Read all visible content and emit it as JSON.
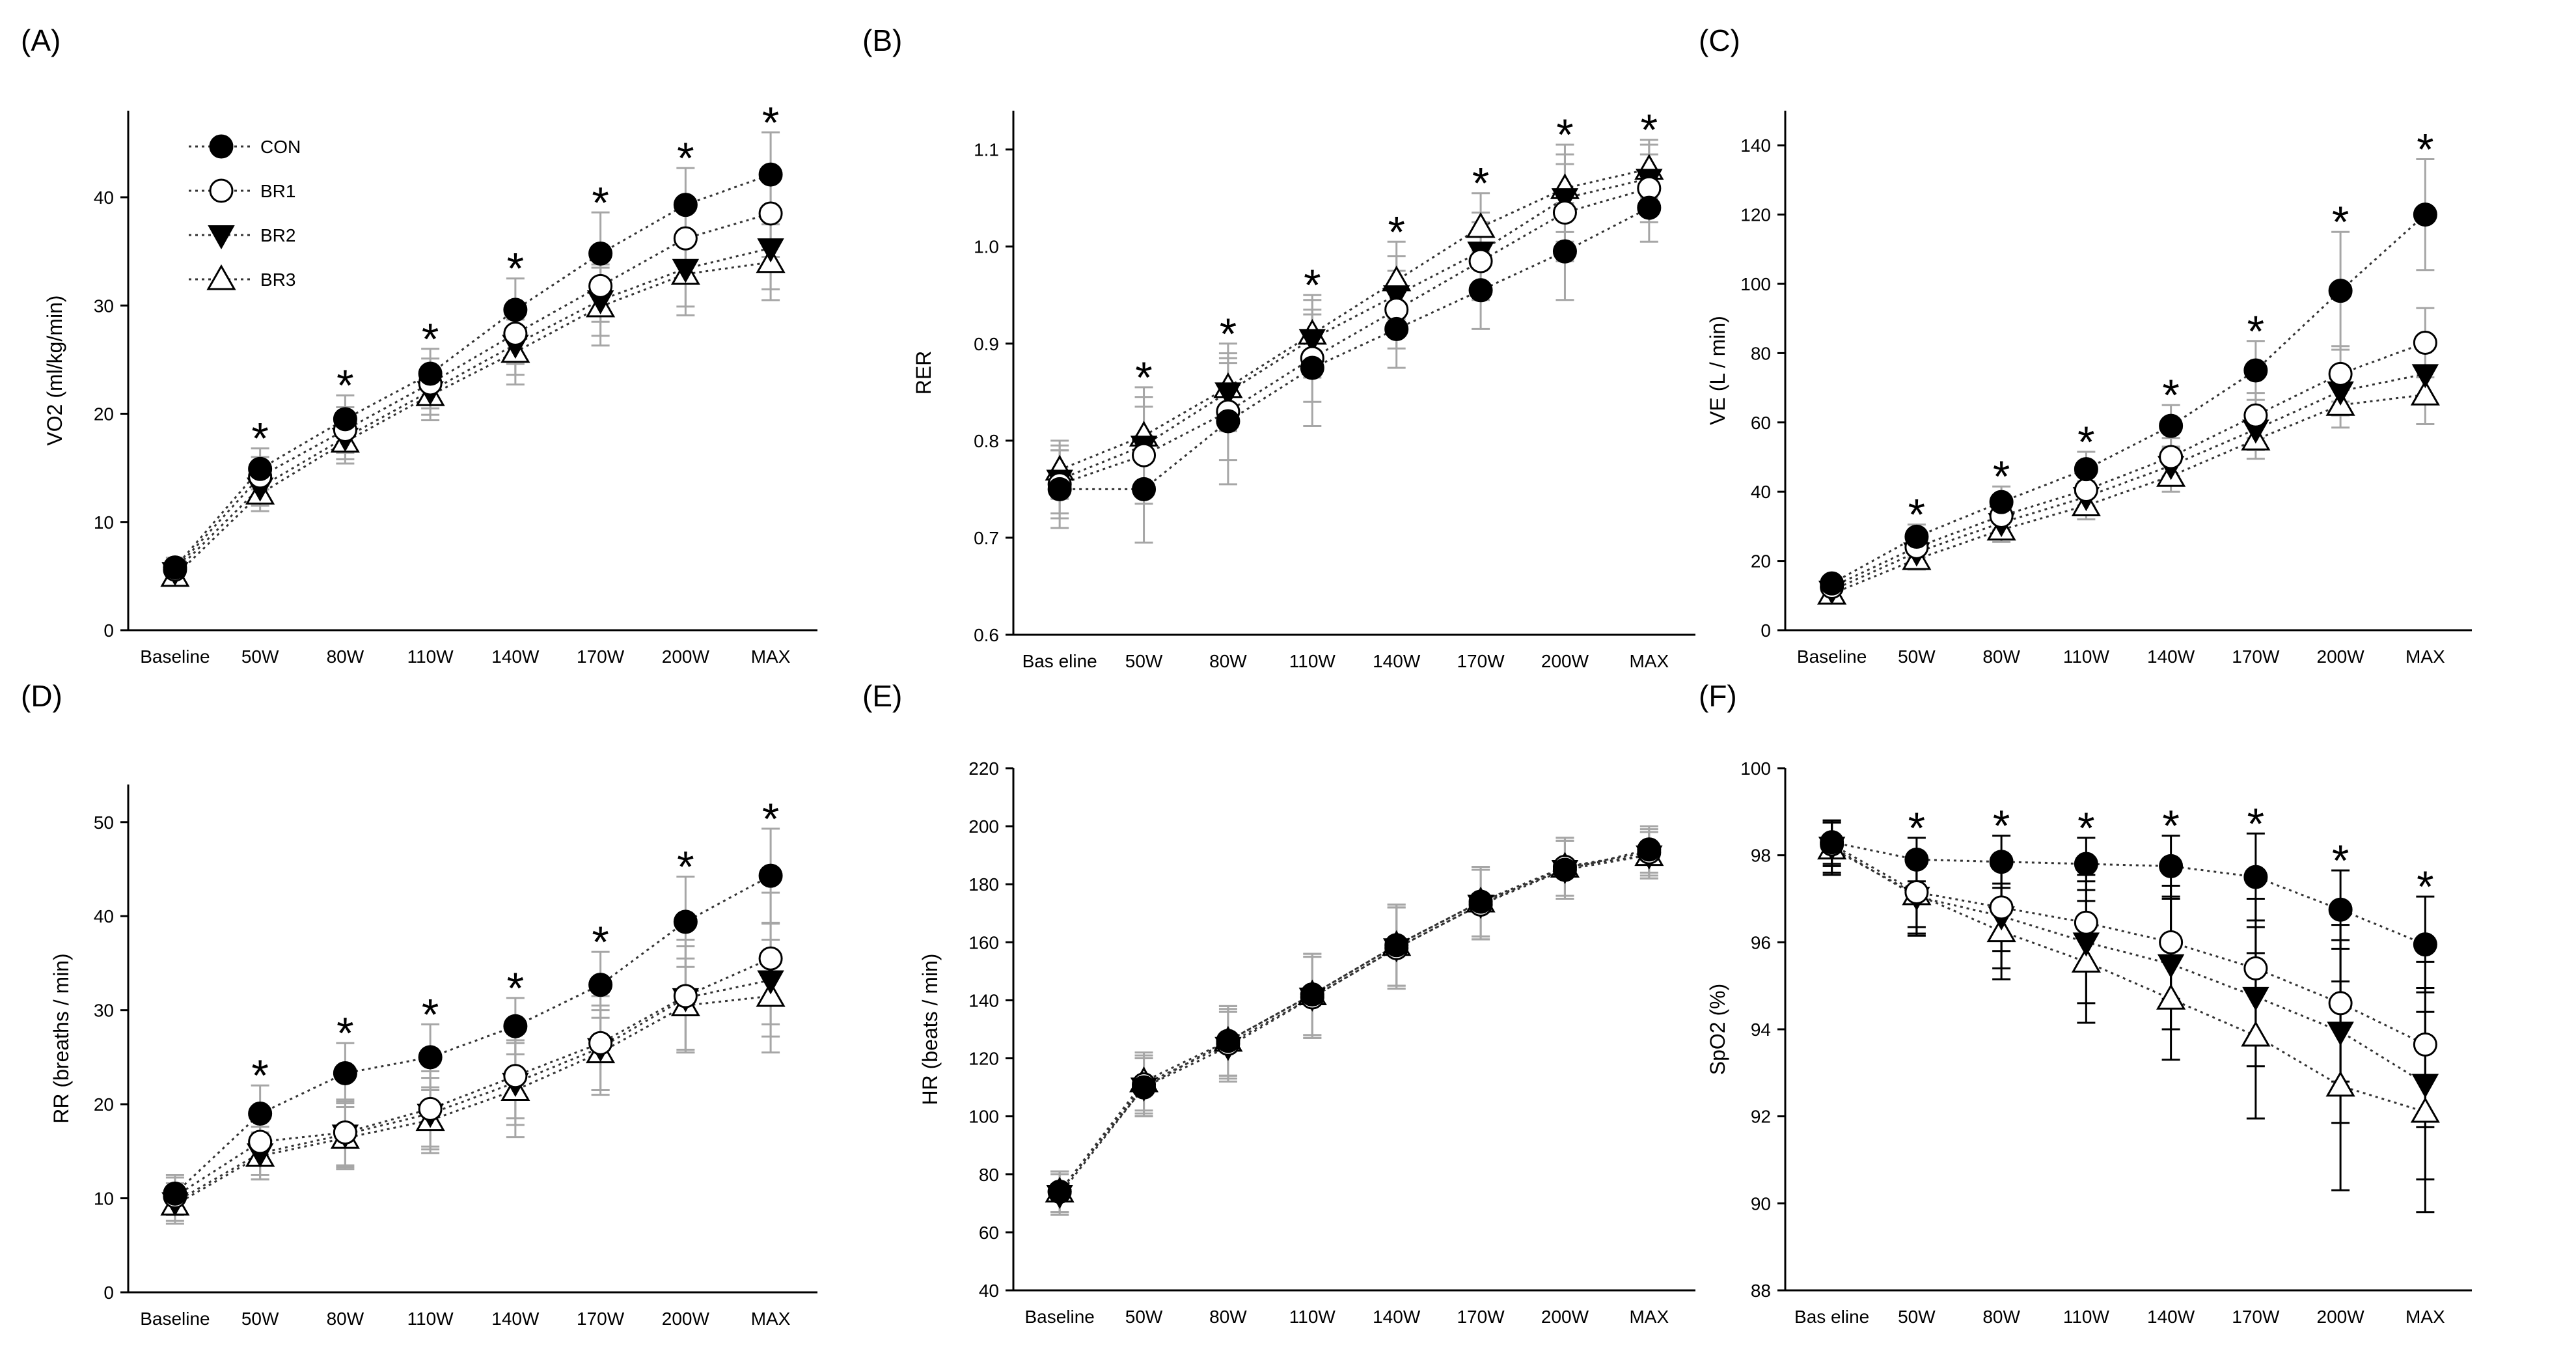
{
  "colors": {
    "error_bar": "#a6a6a6",
    "error_bar_f": "#000000",
    "line": "#333333",
    "marker": "#000000"
  },
  "legend": [
    {
      "name": "CON",
      "marker": "filled-circle"
    },
    {
      "name": "BR1",
      "marker": "open-circle"
    },
    {
      "name": "BR2",
      "marker": "filled-triangle-down"
    },
    {
      "name": "BR3",
      "marker": "open-triangle-up"
    }
  ],
  "chart_data": [
    {
      "panel": "(A)",
      "type": "line",
      "ylabel": "VO2 (ml/kg/min)",
      "ylim": [
        0,
        48
      ],
      "yticks": [
        0,
        10,
        20,
        30,
        40
      ],
      "categories": [
        "Baseline",
        "50W",
        "80W",
        "110W",
        "140W",
        "170W",
        "200W",
        "MAX"
      ],
      "series": [
        {
          "name": "CON",
          "values": [
            5.8,
            14.9,
            19.5,
            23.7,
            29.6,
            34.8,
            39.3,
            42.1
          ],
          "errors": [
            0.9,
            1.9,
            2.2,
            2.3,
            2.9,
            3.8,
            3.4,
            3.9
          ]
        },
        {
          "name": "BR1",
          "values": [
            5.6,
            14.2,
            18.5,
            22.8,
            27.4,
            31.8,
            36.2,
            38.5
          ],
          "errors": [
            0.8,
            1.8,
            2.1,
            2.3,
            2.8,
            3.3,
            3.6,
            4.0
          ]
        },
        {
          "name": "BR2",
          "values": [
            5.4,
            13.2,
            17.8,
            22.1,
            26.4,
            30.5,
            33.4,
            35.3
          ],
          "errors": [
            0.8,
            1.7,
            2.0,
            2.2,
            2.8,
            3.3,
            3.5,
            3.8
          ]
        },
        {
          "name": "BR3",
          "values": [
            5.0,
            12.6,
            17.4,
            21.7,
            25.7,
            29.9,
            32.9,
            34.0
          ],
          "errors": [
            0.8,
            1.6,
            2.0,
            2.3,
            3.0,
            3.6,
            3.8,
            3.5
          ]
        }
      ],
      "significance": [
        "",
        "*",
        "*",
        "*",
        "*",
        "*",
        "*",
        "*"
      ]
    },
    {
      "panel": "(B)",
      "type": "line",
      "ylabel": "RER",
      "ylim": [
        0.6,
        1.14
      ],
      "yticks": [
        "0.6",
        "0.7",
        "0.8",
        "0.9",
        "1.0",
        "1.1"
      ],
      "categories": [
        "Bas eline",
        "50W",
        "80W",
        "110W",
        "140W",
        "170W",
        "200W",
        "MAX"
      ],
      "series": [
        {
          "name": "CON",
          "values": [
            0.75,
            0.75,
            0.82,
            0.875,
            0.915,
            0.955,
            0.995,
            1.04
          ],
          "errors": [
            0.04,
            0.055,
            0.065,
            0.06,
            0.04,
            0.04,
            0.05,
            0.035
          ]
        },
        {
          "name": "BR1",
          "values": [
            0.755,
            0.785,
            0.83,
            0.885,
            0.935,
            0.985,
            1.035,
            1.06
          ],
          "errors": [
            0.035,
            0.05,
            0.05,
            0.045,
            0.04,
            0.04,
            0.05,
            0.035
          ]
        },
        {
          "name": "BR2",
          "values": [
            0.76,
            0.795,
            0.85,
            0.905,
            0.95,
            0.995,
            1.05,
            1.07
          ],
          "errors": [
            0.035,
            0.05,
            0.04,
            0.04,
            0.04,
            0.04,
            0.045,
            0.035
          ]
        },
        {
          "name": "BR3",
          "values": [
            0.77,
            0.805,
            0.855,
            0.91,
            0.965,
            1.02,
            1.06,
            1.08
          ],
          "errors": [
            0.03,
            0.05,
            0.045,
            0.04,
            0.04,
            0.035,
            0.045,
            0.03
          ]
        }
      ],
      "significance": [
        "",
        "*",
        "*",
        "*",
        "*",
        "*",
        "*",
        "*"
      ]
    },
    {
      "panel": "(C)",
      "type": "line",
      "ylabel": "VE (L / min)",
      "ylim": [
        0,
        150
      ],
      "yticks": [
        0,
        20,
        40,
        60,
        80,
        100,
        120,
        140
      ],
      "categories": [
        "Baseline",
        "50W",
        "80W",
        "110W",
        "140W",
        "170W",
        "200W",
        "MAX"
      ],
      "series": [
        {
          "name": "CON",
          "values": [
            13.5,
            27,
            37,
            46.5,
            59,
            75,
            98,
            120
          ],
          "errors": [
            2,
            3.5,
            4.5,
            5,
            6,
            8.5,
            17,
            16
          ]
        },
        {
          "name": "BR1",
          "values": [
            12.5,
            24,
            33,
            40.5,
            50,
            62,
            74,
            83
          ],
          "errors": [
            2,
            3,
            4,
            4.5,
            5.5,
            6.5,
            8,
            10
          ]
        },
        {
          "name": "BR2",
          "values": [
            11.5,
            22.5,
            31,
            38.5,
            47.5,
            58,
            69,
            74
          ],
          "errors": [
            2,
            3,
            4,
            4.5,
            5,
            6,
            7,
            8
          ]
        },
        {
          "name": "BR3",
          "values": [
            10.5,
            20.5,
            29,
            36,
            44.5,
            55,
            65,
            68
          ],
          "errors": [
            2,
            3,
            3.5,
            4,
            4.5,
            5.5,
            6.5,
            8.5
          ]
        }
      ],
      "significance": [
        "",
        "*",
        "*",
        "*",
        "*",
        "*",
        "*",
        "*"
      ]
    },
    {
      "panel": "(D)",
      "type": "line",
      "ylabel": "RR (breaths / min)",
      "ylim": [
        0,
        54
      ],
      "yticks": [
        0,
        10,
        20,
        30,
        40,
        50
      ],
      "categories": [
        "Baseline",
        "50W",
        "80W",
        "110W",
        "140W",
        "170W",
        "200W",
        "MAX"
      ],
      "series": [
        {
          "name": "CON",
          "values": [
            10.5,
            19,
            23.3,
            25,
            28.3,
            32.7,
            39.4,
            44.3
          ],
          "errors": [
            2,
            3,
            3.2,
            3.5,
            3,
            3.5,
            4.8,
            5
          ]
        },
        {
          "name": "BR1",
          "values": [
            10.2,
            16,
            17,
            19.5,
            23,
            26.5,
            31.5,
            35.5
          ],
          "errors": [
            2,
            3.5,
            3.5,
            4,
            4.5,
            5,
            6,
            7
          ]
        },
        {
          "name": "BR2",
          "values": [
            9.6,
            14.8,
            16.8,
            19,
            22.3,
            26,
            31.3,
            33.2
          ],
          "errors": [
            2,
            2.8,
            3.5,
            3.8,
            4.5,
            4.5,
            5.5,
            6
          ]
        },
        {
          "name": "BR3",
          "values": [
            9.3,
            14.5,
            16.4,
            18.3,
            21.5,
            25.5,
            30.5,
            31.5
          ],
          "errors": [
            2,
            2.5,
            3.3,
            3.5,
            5,
            4.5,
            5,
            6
          ]
        }
      ],
      "significance": [
        "",
        "*",
        "*",
        "*",
        "*",
        "*",
        "*",
        "*"
      ]
    },
    {
      "panel": "(E)",
      "type": "line",
      "ylabel": "HR (beats / min)",
      "ylim": [
        40,
        220
      ],
      "yticks": [
        40,
        60,
        80,
        100,
        120,
        140,
        160,
        180,
        200,
        220
      ],
      "categories": [
        "Baseline",
        "50W",
        "80W",
        "110W",
        "140W",
        "170W",
        "200W",
        "MAX"
      ],
      "series": [
        {
          "name": "CON",
          "values": [
            74,
            110,
            126,
            142,
            159,
            174,
            185,
            192
          ],
          "errors": [
            7,
            10,
            12,
            14,
            14,
            12,
            10,
            8
          ]
        },
        {
          "name": "BR1",
          "values": [
            74,
            111,
            125,
            141,
            158,
            173,
            186,
            191
          ],
          "errors": [
            7,
            10,
            12,
            14,
            14,
            12,
            10,
            8
          ]
        },
        {
          "name": "BR2",
          "values": [
            73,
            110,
            124,
            141,
            158,
            173,
            185,
            190
          ],
          "errors": [
            7,
            10,
            12,
            14,
            14,
            12,
            10,
            8
          ]
        },
        {
          "name": "BR3",
          "values": [
            74,
            112,
            126,
            142,
            159,
            174,
            186,
            190
          ],
          "errors": [
            7,
            10,
            12,
            14,
            14,
            12,
            10,
            8
          ]
        }
      ],
      "significance": [
        "",
        "",
        "",
        "",
        "",
        "",
        "",
        ""
      ]
    },
    {
      "panel": "(F)",
      "type": "line",
      "ylabel": "SpO2 (%)",
      "ylim": [
        88,
        100
      ],
      "yticks": [
        88,
        90,
        92,
        94,
        96,
        98,
        100
      ],
      "categories": [
        "Bas eline",
        "50W",
        "80W",
        "110W",
        "140W",
        "170W",
        "200W",
        "MAX"
      ],
      "series": [
        {
          "name": "CON",
          "values": [
            98.3,
            97.9,
            97.85,
            97.8,
            97.75,
            97.5,
            96.75,
            95.95
          ],
          "errors": [
            0.5,
            0.5,
            0.6,
            0.6,
            0.7,
            1.0,
            0.9,
            1.1
          ]
        },
        {
          "name": "BR1",
          "values": [
            98.25,
            97.15,
            96.8,
            96.45,
            96.0,
            95.4,
            94.6,
            93.65
          ],
          "errors": [
            0.5,
            0.8,
            1.0,
            1.1,
            1.3,
            1.6,
            1.8,
            1.9
          ]
        },
        {
          "name": "BR2",
          "values": [
            98.2,
            97.05,
            96.6,
            96.0,
            95.5,
            94.75,
            93.95,
            92.75
          ],
          "errors": [
            0.6,
            0.9,
            1.2,
            1.4,
            1.5,
            1.6,
            2.1,
            2.2
          ]
        },
        {
          "name": "BR3",
          "values": [
            98.15,
            97.1,
            96.25,
            95.55,
            94.7,
            93.85,
            92.7,
            92.1
          ],
          "errors": [
            0.6,
            0.9,
            1.1,
            1.4,
            1.4,
            1.9,
            2.4,
            2.3
          ]
        }
      ],
      "significance": [
        "",
        "*",
        "*",
        "*",
        "*",
        "*",
        "*",
        "*"
      ]
    }
  ]
}
